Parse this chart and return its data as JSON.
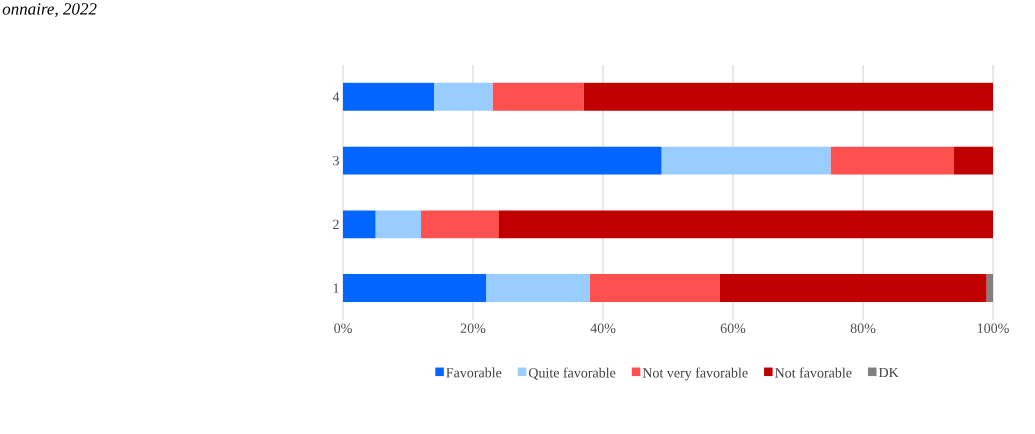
{
  "chart_data": {
    "type": "bar",
    "orientation": "horizontal",
    "stacked": true,
    "categories": [
      "4",
      "3",
      "2",
      "1"
    ],
    "series": [
      {
        "name": "Favorable",
        "color": "#0066ff",
        "values": [
          14,
          49,
          5,
          22
        ]
      },
      {
        "name": "Quite favorable",
        "color": "#99ccff",
        "values": [
          9,
          26,
          7,
          16
        ]
      },
      {
        "name": "Not very favorable",
        "color": "#ff5050",
        "values": [
          14,
          19,
          12,
          20
        ]
      },
      {
        "name": "Not favorable",
        "color": "#c00000",
        "values": [
          63,
          6,
          76,
          41
        ]
      },
      {
        "name": "DK",
        "color": "#808080",
        "values": [
          0,
          0,
          0,
          1
        ]
      }
    ],
    "xlim": [
      0,
      100
    ],
    "xticks": [
      {
        "value": 0,
        "label": "0%"
      },
      {
        "value": 20,
        "label": "20%"
      },
      {
        "value": 40,
        "label": "40%"
      },
      {
        "value": 60,
        "label": "60%"
      },
      {
        "value": 80,
        "label": "80%"
      },
      {
        "value": 100,
        "label": "100%"
      }
    ],
    "grid": "x",
    "legend": "bottom",
    "annotations": [
      "*onnaire, 2022*"
    ]
  }
}
